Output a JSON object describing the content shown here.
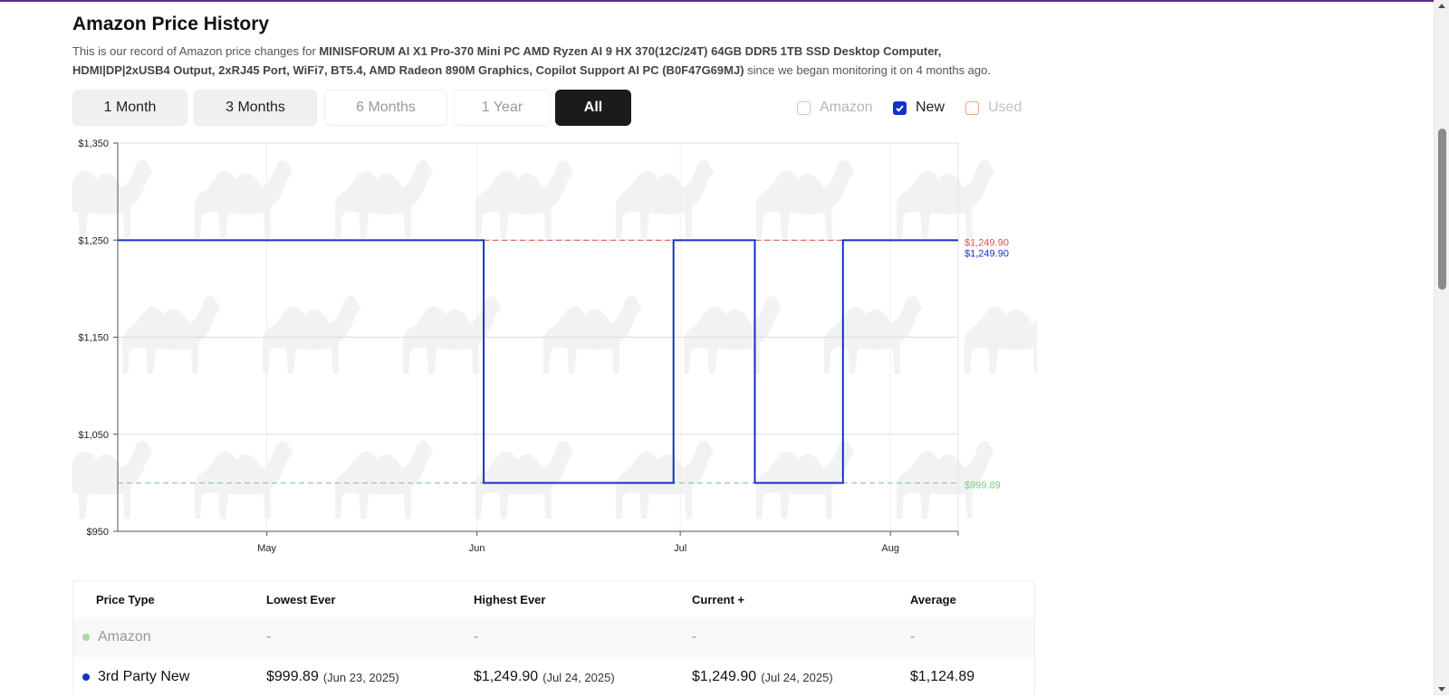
{
  "page": {
    "title": "Amazon Price History",
    "description_prefix": "This is our record of Amazon price changes for ",
    "product_name": "MINISFORUM AI X1 Pro-370 Mini PC AMD Ryzen AI 9 HX 370(12C/24T) 64GB DDR5 1TB SSD Desktop Computer, HDMI|DP|2xUSB4 Output, 2xRJ45 Port, WiFi7, BT5.4, AMD Radeon 890M Graphics, Copilot Support AI PC (B0F47G69MJ)",
    "description_suffix": " since we began monitoring it on 4 months ago."
  },
  "ranges": [
    {
      "label": "1 Month",
      "state": "enabled"
    },
    {
      "label": "3 Months",
      "state": "enabled"
    },
    {
      "label": "6 Months",
      "state": "disabled"
    },
    {
      "label": "1 Year",
      "state": "disabled"
    },
    {
      "label": "All",
      "state": "active"
    }
  ],
  "filters": [
    {
      "label": "Amazon",
      "checked": false,
      "color": "#b7dcb7",
      "disabled": true
    },
    {
      "label": "New",
      "checked": true,
      "color": "#1132c8",
      "disabled": false
    },
    {
      "label": "Used",
      "checked": false,
      "color": "#f1a08c",
      "disabled": true
    }
  ],
  "chart_data": {
    "type": "line",
    "step": true,
    "ylim": [
      950,
      1350
    ],
    "y_ticks": [
      "$1,350",
      "$1,250",
      "$1,150",
      "$1,050",
      "$950"
    ],
    "y_tick_values": [
      1350,
      1250,
      1150,
      1050,
      950
    ],
    "x_domain": [
      "2025-04-09",
      "2025-08-11"
    ],
    "x_ticks": [
      {
        "label": "May",
        "date": "2025-05-01"
      },
      {
        "label": "Jun",
        "date": "2025-06-01"
      },
      {
        "label": "Jul",
        "date": "2025-07-01"
      },
      {
        "label": "Aug",
        "date": "2025-08-01"
      }
    ],
    "series": [
      {
        "name": "3rd Party New",
        "color": "#1132c8",
        "points": [
          {
            "x": "2025-04-09",
            "y": 1249.9
          },
          {
            "x": "2025-06-02",
            "y": 1249.9
          },
          {
            "x": "2025-06-02",
            "y": 999.89
          },
          {
            "x": "2025-06-30",
            "y": 999.89
          },
          {
            "x": "2025-06-30",
            "y": 1249.9
          },
          {
            "x": "2025-07-12",
            "y": 1249.9
          },
          {
            "x": "2025-07-12",
            "y": 999.89
          },
          {
            "x": "2025-07-25",
            "y": 999.89
          },
          {
            "x": "2025-07-25",
            "y": 1249.9
          },
          {
            "x": "2025-08-11",
            "y": 1249.9
          }
        ]
      }
    ],
    "reference_lines": [
      {
        "value": 1249.9,
        "label": "$1,249.90",
        "color": "#d9534f",
        "from": "2025-06-02",
        "to": "2025-08-11"
      },
      {
        "value": 999.89,
        "label": "$999.89",
        "color": "#7ccd7c",
        "from": "2025-04-09",
        "to": "2025-08-11"
      }
    ],
    "end_labels": [
      {
        "label": "$1,249.90",
        "color": "#d9534f"
      },
      {
        "label": "$1,249.90",
        "color": "#1132c8"
      },
      {
        "label": "$999.89",
        "color": "#7ccd7c"
      }
    ],
    "grid": true
  },
  "table": {
    "headers": [
      "Price Type",
      "Lowest Ever",
      "Highest Ever",
      "Current +",
      "Average"
    ],
    "rows": [
      {
        "type": "Amazon",
        "dot_color": "#a8d8a8",
        "lowest": "-",
        "lowest_date": "",
        "highest": "-",
        "highest_date": "",
        "current": "-",
        "current_date": "",
        "average": "-"
      },
      {
        "type": "3rd Party New",
        "dot_color": "#1132c8",
        "lowest": "$999.89",
        "lowest_date": "(Jun 23, 2025)",
        "highest": "$1,249.90",
        "highest_date": "(Jul 24, 2025)",
        "current": "$1,249.90",
        "current_date": "(Jul 24, 2025)",
        "average": "$1,124.89"
      }
    ]
  }
}
